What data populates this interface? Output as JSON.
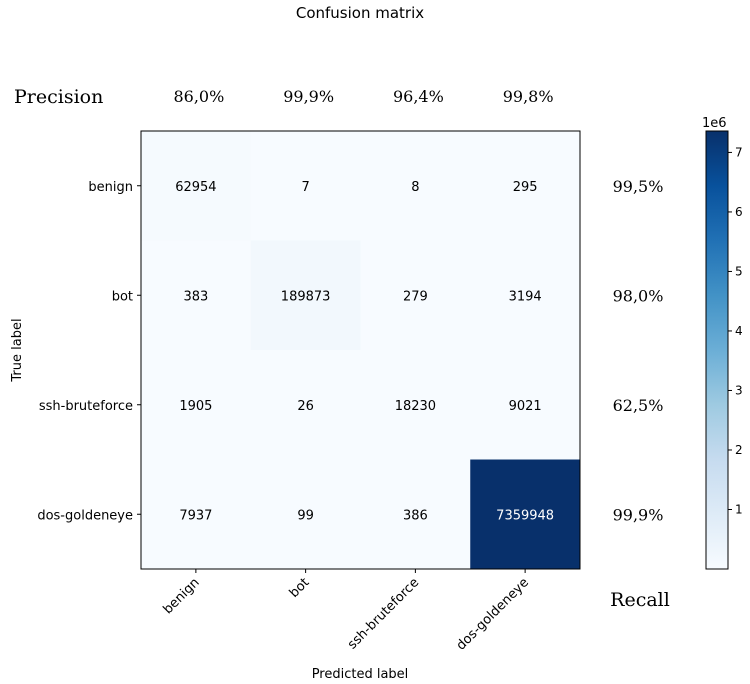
{
  "chart_data": {
    "type": "heatmap",
    "title": "Confusion matrix",
    "xlabel": "Predicted label",
    "ylabel": "True label",
    "x_categories": [
      "benign",
      "bot",
      "ssh-bruteforce",
      "dos-goldeneye"
    ],
    "y_categories": [
      "benign",
      "bot",
      "ssh-bruteforce",
      "dos-goldeneye"
    ],
    "matrix": [
      [
        62954,
        7,
        8,
        295
      ],
      [
        383,
        189873,
        279,
        3194
      ],
      [
        1905,
        26,
        18230,
        9021
      ],
      [
        7937,
        99,
        386,
        7359948
      ]
    ],
    "precision_label": "Precision",
    "precision": [
      "86,0%",
      "99,9%",
      "96,4%",
      "99,8%"
    ],
    "recall_label": "Recall",
    "recall": [
      "99,5%",
      "98,0%",
      "62,5%",
      "99,9%"
    ],
    "colorbar": {
      "colormap": "Blues",
      "multiplier_label": "1e6",
      "ticks": [
        1,
        2,
        3,
        4,
        5,
        6,
        7
      ],
      "tick_labels": [
        "1",
        "2",
        "3",
        "4",
        "5",
        "6",
        "7"
      ],
      "range": [
        0,
        7.36
      ]
    },
    "colors": {
      "low": "#f7fbff",
      "high": "#08306b"
    }
  }
}
